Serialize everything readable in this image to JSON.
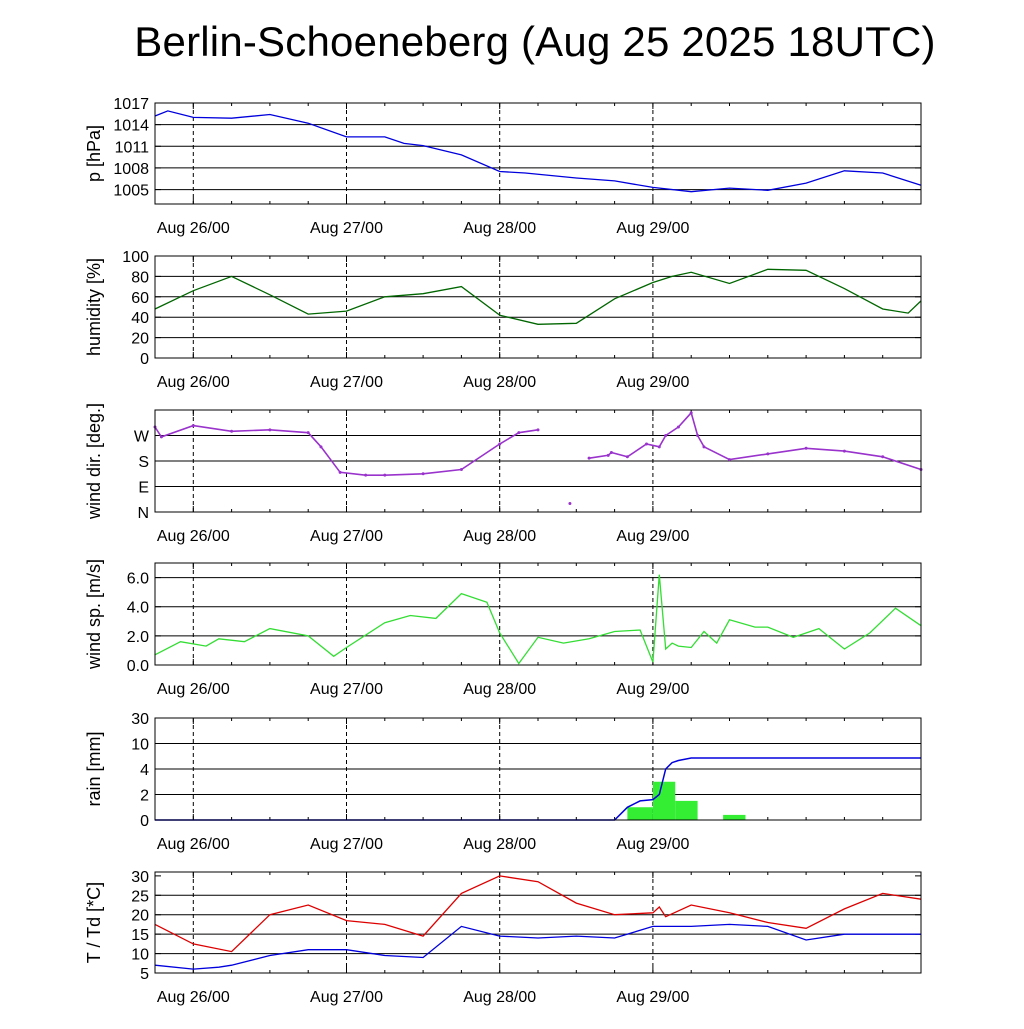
{
  "title": "Berlin-Schoeneberg (Aug 25 2025 18UTC)",
  "x_day_labels": [
    "Aug 26/00",
    "Aug 27/00",
    "Aug 28/00",
    "Aug 29/00"
  ],
  "x_unit_note": "hours after Aug 25 18UTC",
  "chart_data": [
    {
      "type": "line",
      "ylabel": "p [hPa]",
      "ylim": [
        1003,
        1017
      ],
      "yticks": [
        1005,
        1008,
        1011,
        1014,
        1017
      ],
      "ytick_labels": [
        "1005",
        "1008",
        "1011",
        "1014",
        "1017"
      ],
      "hgrid": [
        1005,
        1008,
        1011,
        1014
      ],
      "color": "#0000dd",
      "x": [
        0,
        2,
        6,
        12,
        18,
        24,
        30,
        36,
        39,
        42,
        48,
        54,
        58,
        66,
        72,
        78,
        84,
        90,
        96,
        102,
        108,
        114,
        120
      ],
      "values": [
        1015.2,
        1015.9,
        1015.0,
        1014.9,
        1015.4,
        1014.2,
        1012.3,
        1012.3,
        1011.4,
        1011.1,
        1009.8,
        1007.5,
        1007.3,
        1006.6,
        1006.2,
        1005.3,
        1004.7,
        1005.2,
        1004.9,
        1005.9,
        1007.6,
        1007.3,
        1005.6
      ]
    },
    {
      "type": "line",
      "ylabel": "humidity [%]",
      "ylim": [
        0,
        100
      ],
      "yticks": [
        0,
        20,
        40,
        60,
        80,
        100
      ],
      "ytick_labels": [
        "0",
        "20",
        "40",
        "60",
        "80",
        "100"
      ],
      "hgrid": [
        20,
        40,
        60,
        80
      ],
      "color": "#006600",
      "x": [
        0,
        6,
        12,
        18,
        24,
        30,
        36,
        42,
        48,
        54,
        60,
        66,
        72,
        78,
        81,
        84,
        90,
        96,
        102,
        108,
        114,
        118,
        120
      ],
      "values": [
        48,
        66,
        80,
        62,
        43,
        46,
        60,
        63,
        70,
        42,
        33,
        34,
        58,
        74,
        80,
        84,
        73,
        87,
        86,
        68,
        48,
        44,
        56
      ]
    },
    {
      "type": "scatter",
      "ylabel": "wind dir. [deg.]",
      "ylim": [
        0,
        360
      ],
      "yticks": [
        0,
        90,
        180,
        270
      ],
      "ytick_labels": [
        "N",
        "E",
        "S",
        "W"
      ],
      "hgrid": [
        90,
        180,
        270
      ],
      "color": "#9933cc",
      "x": [
        0,
        1,
        6,
        12,
        18,
        24,
        26,
        29,
        33,
        36,
        42,
        48,
        54,
        57,
        60,
        65,
        68,
        71,
        71.5,
        74,
        77,
        79,
        80,
        82,
        84,
        85,
        86,
        90,
        96,
        102,
        108,
        114,
        120
      ],
      "values": [
        300,
        265,
        305,
        285,
        290,
        280,
        230,
        140,
        130,
        130,
        135,
        150,
        240,
        280,
        290,
        30,
        190,
        200,
        210,
        195,
        240,
        230,
        270,
        300,
        350,
        270,
        230,
        185,
        205,
        225,
        215,
        195,
        150
      ]
    },
    {
      "type": "line",
      "ylabel": "wind sp. [m/s]",
      "ylim": [
        0,
        7
      ],
      "yticks": [
        0,
        2,
        4,
        6
      ],
      "ytick_labels": [
        "0.0",
        "2.0",
        "4.0",
        "6.0"
      ],
      "hgrid": [
        2,
        4,
        6
      ],
      "color": "#33dd33",
      "x": [
        0,
        4,
        8,
        10,
        14,
        18,
        24,
        28,
        30,
        36,
        40,
        44,
        48,
        52,
        54,
        57,
        60,
        64,
        68,
        72,
        76,
        78,
        79,
        80,
        81,
        82,
        84,
        86,
        88,
        90,
        94,
        96,
        100,
        104,
        108,
        112,
        116,
        120
      ],
      "values": [
        0.7,
        1.6,
        1.3,
        1.8,
        1.6,
        2.5,
        2.0,
        0.6,
        1.2,
        2.9,
        3.4,
        3.2,
        4.9,
        4.3,
        2.2,
        0.1,
        1.9,
        1.5,
        1.8,
        2.3,
        2.4,
        0.2,
        6.2,
        1.1,
        1.5,
        1.3,
        1.2,
        2.3,
        1.5,
        3.1,
        2.6,
        2.6,
        1.9,
        2.5,
        1.1,
        2.2,
        3.9,
        2.7
      ]
    },
    {
      "type": "bar+line",
      "ylabel": "rain [mm]",
      "ylim": [
        0,
        30
      ],
      "yticks": [
        0,
        2,
        4,
        10,
        30
      ],
      "ytick_labels": [
        "0",
        "2",
        "4",
        "10",
        "30"
      ],
      "hgrid": [
        2,
        4,
        10
      ],
      "scale": "nonlinear (0,2,4,10,30 equally spaced)",
      "bar_color": "#33ee33",
      "bars": [
        {
          "x_start": 74,
          "x_end": 78,
          "value": 1.0
        },
        {
          "x_start": 78,
          "x_end": 81.5,
          "value": 3.0
        },
        {
          "x_start": 81.5,
          "x_end": 85,
          "value": 1.5
        },
        {
          "x_start": 89,
          "x_end": 92.5,
          "value": 0.4
        }
      ],
      "line_color": "#0000dd",
      "x": [
        0,
        72,
        74,
        76,
        78,
        79,
        80,
        81,
        82,
        84,
        120
      ],
      "values": [
        0,
        0,
        1.0,
        1.5,
        1.6,
        2.0,
        4.0,
        5.5,
        6.0,
        6.6,
        6.6
      ]
    },
    {
      "type": "line",
      "ylabel": "T / Td [*C]",
      "ylim": [
        5,
        31
      ],
      "yticks": [
        5,
        10,
        15,
        20,
        25,
        30
      ],
      "ytick_labels": [
        "5",
        "10",
        "15",
        "20",
        "25",
        "30"
      ],
      "hgrid": [
        10,
        15,
        20,
        25
      ],
      "series": [
        {
          "color": "#dd0000",
          "x": [
            0,
            6,
            12,
            18,
            24,
            30,
            36,
            42,
            48,
            54,
            60,
            66,
            72,
            78,
            79,
            80,
            84,
            90,
            96,
            102,
            108,
            114,
            120
          ],
          "values": [
            17.5,
            12.5,
            10.5,
            20.0,
            22.5,
            18.5,
            17.5,
            14.5,
            25.5,
            30.0,
            28.5,
            23.0,
            20.0,
            20.5,
            22.0,
            19.5,
            22.5,
            20.5,
            18.0,
            16.5,
            21.5,
            25.5,
            24.0
          ]
        },
        {
          "color": "#0000dd",
          "x": [
            0,
            6,
            10,
            12,
            18,
            24,
            30,
            36,
            42,
            48,
            54,
            60,
            66,
            72,
            78,
            84,
            90,
            96,
            102,
            108,
            114,
            120
          ],
          "values": [
            7.0,
            6.0,
            6.5,
            7.0,
            9.5,
            11.0,
            11.0,
            9.5,
            9.0,
            17.0,
            14.5,
            14.0,
            14.5,
            14.0,
            17.0,
            17.0,
            17.5,
            17.0,
            13.5,
            15.0,
            15.0,
            15.0
          ]
        }
      ]
    }
  ]
}
